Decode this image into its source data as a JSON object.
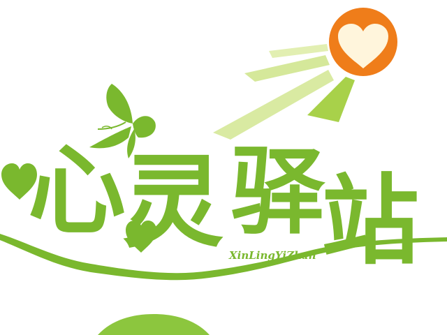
{
  "logo": {
    "title_chars": [
      "心",
      "灵",
      "驿",
      "站"
    ],
    "pinyin": "XinLingYiZhan"
  },
  "colors": {
    "primary_green": "#7ab82e",
    "light_green": "#d5e89a",
    "mid_green": "#a8d14a",
    "sun_orange": "#ef7d1a",
    "heart_cream": "#fff5dc",
    "background": "#ffffff"
  },
  "icons": [
    "sun-icon",
    "heart-icon",
    "butterfly-icon",
    "sun-ray-icon"
  ]
}
